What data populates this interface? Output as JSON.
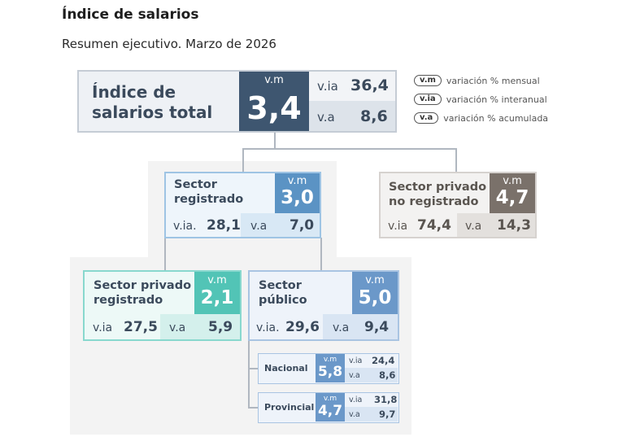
{
  "header": {
    "title": "Índice de salarios",
    "subtitle": "Resumen ejecutivo. Marzo  de 2026"
  },
  "colors": {
    "total": "#3e5670",
    "registrado": "#5b93c4",
    "no_registrado": "#7a716a",
    "privado_registrado": "#52c4b6",
    "publico": "#6b98c9"
  },
  "total": {
    "name_line1": "Índice de",
    "name_line2": "salarios total",
    "vm_label": "v.m",
    "vm_value": "3,4",
    "via_label": "v.ia",
    "via_value": "36,4",
    "va_label": "v.a",
    "va_value": "8,6"
  },
  "legend": [
    {
      "pill": "v.m",
      "text": "variación % mensual"
    },
    {
      "pill": "v.ia",
      "text": "variación % interanual"
    },
    {
      "pill": "v.a",
      "text": "variación % acumulada"
    }
  ],
  "registrado": {
    "name_line1": "Sector",
    "name_line2": "registrado",
    "vm_label": "v.m",
    "vm_value": "3,0",
    "via_label": "v.ia.",
    "via_value": "28,1",
    "va_label": "v.a",
    "va_value": "7,0"
  },
  "no_registrado": {
    "name_line1": "Sector privado",
    "name_line2": "no registrado",
    "vm_label": "v.m",
    "vm_value": "4,7",
    "via_label": "v.ia",
    "via_value": "74,4",
    "va_label": "v.a",
    "va_value": "14,3"
  },
  "privado_registrado": {
    "name_line1": "Sector privado",
    "name_line2": "registrado",
    "vm_label": "v.m",
    "vm_value": "2,1",
    "via_label": "v.ia",
    "via_value": "27,5",
    "va_label": "v.a",
    "va_value": "5,9"
  },
  "publico": {
    "name_line1": "Sector",
    "name_line2": "público",
    "vm_label": "v.m",
    "vm_value": "5,0",
    "via_label": "v.ia.",
    "via_value": "29,6",
    "va_label": "v.a",
    "va_value": "9,4"
  },
  "nacional": {
    "name": "Nacional",
    "vm_label": "v.m",
    "vm_value": "5,8",
    "via_label": "v.ia",
    "via_value": "24,4",
    "va_label": "v.a",
    "va_value": "8,6"
  },
  "provincial": {
    "name": "Provincial",
    "vm_label": "v.m",
    "vm_value": "4,7",
    "via_label": "v.ia",
    "via_value": "31,8",
    "va_label": "v.a",
    "va_value": "9,7"
  }
}
